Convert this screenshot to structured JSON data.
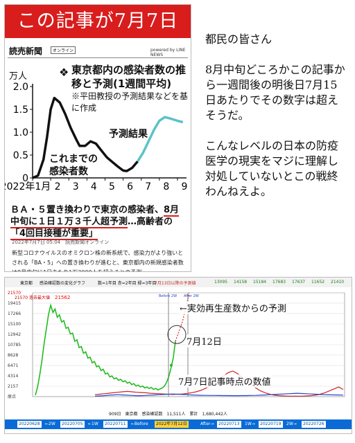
{
  "article": {
    "banner": "この記事が7月7日",
    "masthead": "読売新聞",
    "masthead_tag": "オンライン",
    "powered": "powered by LINE NEWS",
    "chart_title": "東京都内の感染者数の推移と予測(1週間平均)",
    "chart_note": "※平田教授の予測結果などを基に作成",
    "forecast_label": "予測結果",
    "actual_label": "これまでの感染者数",
    "unit_label": "万人",
    "headline_1": "ＢＡ・５置き換わりで東京の感染者、",
    "headline_2": "8月",
    "headline_3": "中旬に１日１万３千人超予測",
    "headline_4": "…高齢者の",
    "headline_5": "「4回目接種が重要」",
    "meta": "2022年7月7日 05:04　読売新聞オンライン",
    "body": "新型コロナウイルスのオミクロン株の新系統で、感染力がより強いとされる「BA・5」への置き換わりが進むと、東京都内の新規感染者数は8月中旬に1日あたり1万3000人を超えるとの予測"
  },
  "comment": {
    "p1": "都民の皆さん",
    "p2": "8月中旬どころかこの記事から一週間後の明後日7月15日あたりでその数字は超えそうだ。",
    "p3": "こんなレベルの日本の防疫医学の現実をマジに理解し対処していないとこの戦終わんねえよ。"
  },
  "app": {
    "header": {
      "location": "東京都",
      "title": "感染確認数の変化グラフ",
      "scale": "数=1年目 赤=2年目 緑=3年目",
      "forecast_caption": "7月13日以降の予測値",
      "forecast_values": [
        "13095",
        "14158",
        "15184",
        "17683",
        "17637",
        "11652",
        "21410"
      ]
    },
    "chart_labels": {
      "max_label": "21570 過去最大値",
      "max_red": "21562",
      "before": "Before 2W",
      "after": "After 2W",
      "origin": "原点"
    },
    "annotations": {
      "rt_forecast": "←実効再生産数からの予測",
      "jul12": "7月12日",
      "jul7": "7月7日記事時点の数値"
    },
    "status": "909日　東京都　感染確認数　11,511人　累計　1,680,442人",
    "nav": [
      "20220628",
      "←2W",
      "20220705",
      "←1W",
      "20220711",
      "←Before",
      "2022年7月12日",
      "After→",
      "20220713",
      "1W→",
      "20220719",
      "2W→",
      "20220726"
    ]
  },
  "chart_data": [
    {
      "type": "line",
      "title": "東京都内の感染者数の推移と予測(1週間平均)",
      "ylabel": "万人",
      "ylim": [
        0,
        2.0
      ],
      "yticks": [
        "0",
        "0.5",
        "1.0",
        "1.5",
        "2.0"
      ],
      "xticks": [
        "2022年1月",
        "2",
        "3",
        "4",
        "5",
        "6",
        "7",
        "8",
        "9"
      ],
      "series": [
        {
          "name": "これまでの感染者数",
          "x": [
            1.0,
            1.3,
            1.6,
            1.8,
            2.0,
            2.2,
            2.5,
            2.8,
            3.1,
            3.4,
            3.6,
            3.9,
            4.2,
            4.5,
            4.8,
            5.1,
            5.4,
            5.7,
            6.0,
            6.2,
            6.5,
            6.8
          ],
          "y": [
            0.0,
            0.05,
            0.4,
            0.9,
            1.5,
            1.75,
            1.65,
            1.4,
            1.1,
            0.85,
            0.7,
            0.7,
            0.8,
            0.75,
            0.6,
            0.45,
            0.35,
            0.25,
            0.16,
            0.15,
            0.22,
            0.36
          ]
        },
        {
          "name": "予測結果",
          "x": [
            6.8,
            7.1,
            7.4,
            7.7,
            8.0,
            8.3,
            8.6,
            9.0,
            9.3
          ],
          "y": [
            0.36,
            0.55,
            0.8,
            1.05,
            1.25,
            1.33,
            1.3,
            1.25,
            1.22
          ]
        }
      ]
    },
    {
      "type": "line",
      "title": "感染確認数の変化グラフ",
      "yticks": [
        "21570",
        "19415",
        "17266",
        "15100",
        "12942",
        "10785",
        "8628",
        "6471",
        "4314",
        "2157"
      ],
      "series": [
        {
          "name": "緑=3年目",
          "values": [
            300,
            2000,
            4500,
            7500,
            11000,
            14000,
            17000,
            19000,
            17500,
            18200,
            16500,
            17000,
            15500,
            15800,
            14200,
            14400,
            13000,
            13200,
            11500,
            11800,
            10200,
            10400,
            9000,
            9300,
            8000,
            8200,
            7000,
            7300,
            6200,
            6400,
            5400,
            5700,
            4700,
            4900,
            4100,
            4300,
            3700,
            3900,
            3400,
            3600,
            3100,
            3300,
            2800,
            3000,
            2500,
            2700,
            2200,
            2400,
            2000,
            2200,
            1800,
            2000,
            1700,
            1900,
            1500,
            1700,
            1400,
            1600,
            1800,
            2200,
            3000,
            4200,
            6000,
            8000,
            11500
          ]
        },
        {
          "name": "赤=2年目",
          "values": [
            400,
            500,
            600,
            700,
            800,
            900,
            1000,
            1100,
            1000,
            900,
            850,
            800,
            700,
            650,
            600,
            550,
            500,
            450,
            500,
            550,
            650,
            800,
            1000,
            1300,
            1700,
            2200,
            2800,
            3600,
            4300,
            5000,
            5300,
            4800,
            4000,
            3200,
            2500,
            1800,
            1200,
            800,
            500,
            300,
            200,
            150,
            100,
            100,
            100,
            100,
            150,
            200,
            300,
            500,
            800,
            1200,
            1600,
            2000,
            1500
          ]
        },
        {
          "name": "数=1年目",
          "values": [
            100,
            150,
            200,
            300,
            350,
            400,
            350,
            300,
            250,
            200,
            200,
            250,
            300,
            350,
            400,
            450,
            500,
            550,
            500,
            450,
            400,
            350,
            300,
            280,
            260,
            250,
            240,
            230,
            220,
            210,
            200,
            200,
            210,
            220,
            240,
            260,
            300,
            350,
            400,
            450,
            500,
            550,
            600,
            650,
            700,
            650,
            600,
            550,
            500,
            450,
            400,
            380,
            360,
            340,
            320
          ]
        }
      ]
    }
  ]
}
